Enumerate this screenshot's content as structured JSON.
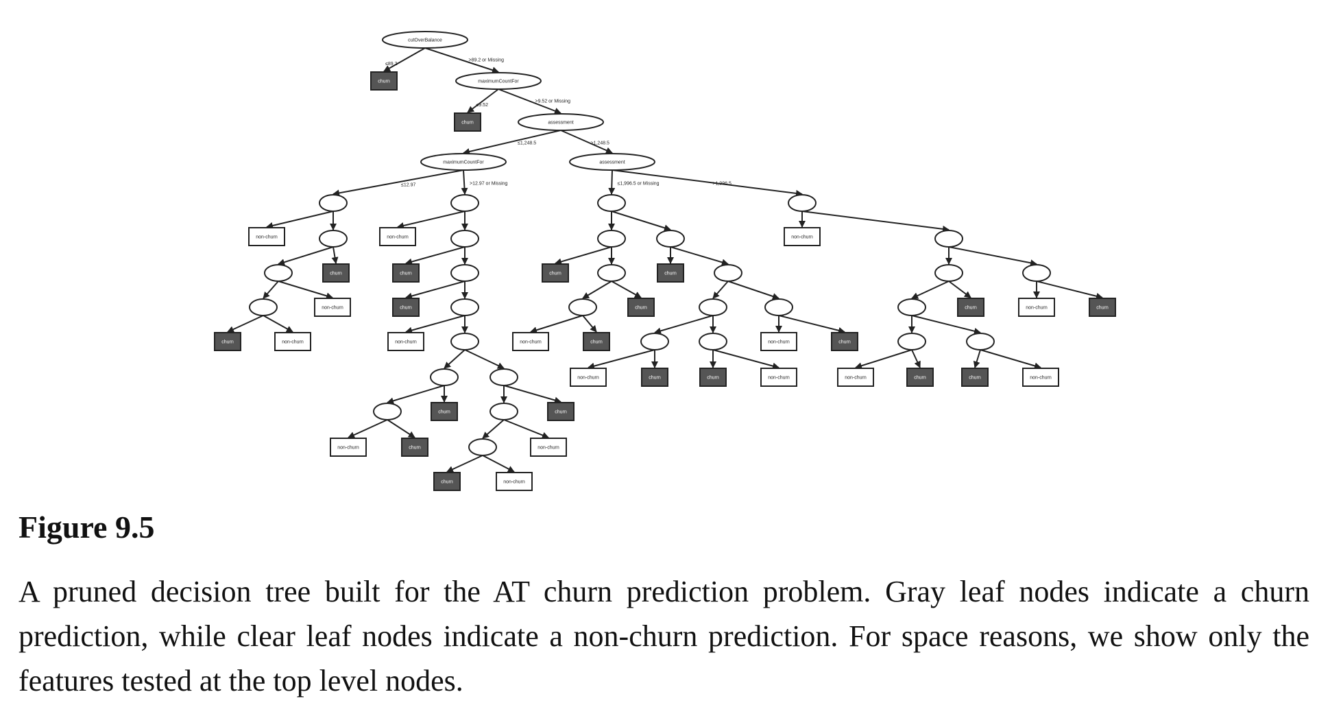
{
  "figure": {
    "label": "Figure 9.5",
    "caption": "A pruned decision tree built for the AT churn prediction problem. Gray leaf nodes indicate a churn prediction, while clear leaf nodes indicate a non-churn prediction. For space reasons, we show only the features tested at the top level nodes."
  },
  "colors": {
    "churn_leaf": "#555555",
    "nonchurn_leaf": "#ffffff",
    "line": "#222222"
  },
  "tree": {
    "node_labels": {
      "root": "cutOverBalance",
      "n1": "maximumCountFor",
      "n2": "assessment",
      "n3": "maximumCountFor",
      "n4": "assessment"
    },
    "edge_labels": {
      "root_left": "≤89.2",
      "root_right": ">89.2 or Missing",
      "n1_left": "≤9.52",
      "n1_right": ">9.52 or Missing",
      "n2_left": "≤1,248.5",
      "n2_right": ">1,248.5",
      "n3_left": "≤12.97",
      "n3_right": ">12.97 or Missing",
      "n4_left": "≤1,996.5 or Missing",
      "n4_right": ">1,996.5"
    },
    "leaf_labels": {
      "churn": "churn",
      "nonchurn": "non-churn"
    }
  }
}
